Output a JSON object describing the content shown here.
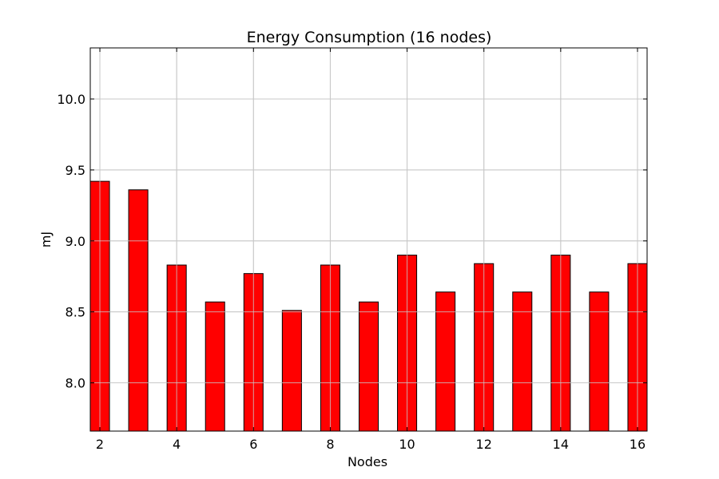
{
  "chart_data": {
    "type": "bar",
    "title": "Energy Consumption (16 nodes)",
    "xlabel": "Nodes",
    "ylabel": "mJ",
    "x": [
      2,
      3,
      4,
      5,
      6,
      7,
      8,
      9,
      10,
      11,
      12,
      13,
      14,
      15,
      16
    ],
    "values": [
      9.42,
      9.36,
      8.83,
      8.57,
      8.77,
      8.51,
      8.83,
      8.57,
      8.9,
      8.64,
      8.84,
      8.64,
      8.9,
      8.64,
      8.84
    ],
    "xlim": [
      1.75,
      16.25
    ],
    "ylim": [
      7.66,
      10.36
    ],
    "xticks": [
      2,
      4,
      6,
      8,
      10,
      12,
      14,
      16
    ],
    "xtick_labels": [
      "2",
      "4",
      "6",
      "8",
      "10",
      "12",
      "14",
      "16"
    ],
    "yticks": [
      8.0,
      8.5,
      9.0,
      9.5,
      10.0
    ],
    "ytick_labels": [
      "8.0",
      "8.5",
      "9.0",
      "9.5",
      "10.0"
    ],
    "bar_width": 0.5,
    "grid": true,
    "legend": false,
    "bar_color": "#ff0000",
    "edge_color": "#000000",
    "grid_color": "#c8c8c8"
  }
}
